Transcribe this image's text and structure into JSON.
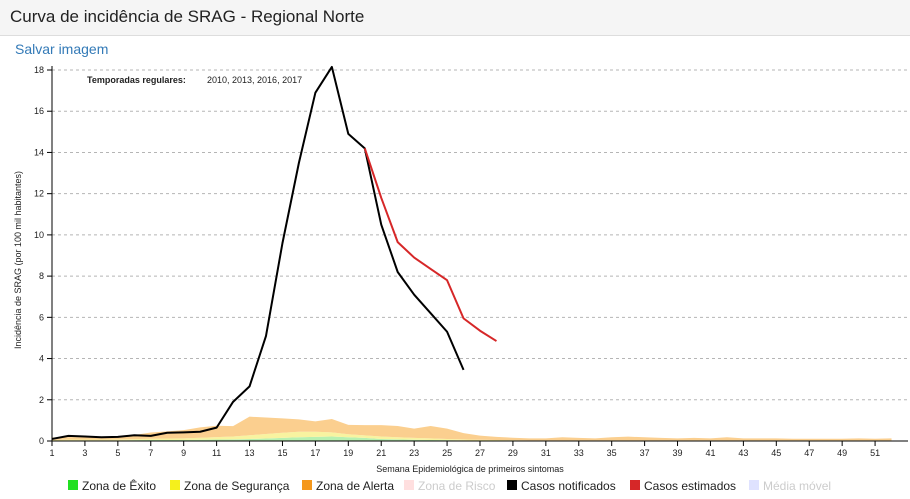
{
  "page": {
    "title": "Curva de incidência de SRAG - Regional Norte",
    "save_label": "Salvar imagem"
  },
  "chart_data": {
    "type": "line",
    "title": "",
    "xlabel": "Semana Epidemiológica de primeiros sintomas",
    "ylabel": "Incidência de SRAG (por 100 mil habitantes)",
    "xlim": [
      1,
      53
    ],
    "ylim": [
      0,
      18
    ],
    "xticks": [
      1,
      3,
      5,
      7,
      9,
      11,
      13,
      15,
      17,
      19,
      21,
      23,
      25,
      27,
      29,
      31,
      33,
      35,
      37,
      39,
      41,
      43,
      45,
      47,
      49,
      51
    ],
    "yticks": [
      0,
      2,
      4,
      6,
      8,
      10,
      12,
      14,
      16,
      18
    ],
    "grid": "horizontal dashed",
    "annotation": {
      "label": "Temporadas regulares:",
      "value": "2010, 2013, 2016, 2017"
    },
    "zones": {
      "x": [
        1,
        2,
        3,
        4,
        5,
        6,
        7,
        8,
        9,
        10,
        11,
        12,
        13,
        14,
        15,
        16,
        17,
        18,
        19,
        20,
        21,
        22,
        23,
        24,
        25,
        26,
        27,
        28,
        29,
        30,
        31,
        32,
        33,
        34,
        35,
        36,
        37,
        38,
        39,
        40,
        41,
        42,
        43,
        44,
        45,
        46,
        47,
        48,
        49,
        50,
        51,
        52
      ],
      "exito": [
        0.02,
        0.03,
        0.03,
        0.03,
        0.03,
        0.04,
        0.05,
        0.05,
        0.05,
        0.06,
        0.07,
        0.08,
        0.1,
        0.12,
        0.15,
        0.18,
        0.2,
        0.22,
        0.18,
        0.15,
        0.1,
        0.08,
        0.06,
        0.05,
        0.04,
        0.03,
        0.02,
        0.02,
        0.01,
        0.01,
        0.01,
        0.01,
        0.01,
        0.01,
        0.01,
        0.01,
        0.01,
        0.01,
        0.01,
        0.01,
        0.01,
        0.01,
        0.01,
        0.01,
        0.01,
        0.01,
        0.01,
        0.01,
        0.01,
        0.01,
        0.01,
        0.01
      ],
      "seguranca": [
        0.03,
        0.04,
        0.04,
        0.04,
        0.05,
        0.05,
        0.06,
        0.07,
        0.08,
        0.1,
        0.12,
        0.14,
        0.18,
        0.22,
        0.25,
        0.27,
        0.25,
        0.2,
        0.15,
        0.12,
        0.12,
        0.1,
        0.09,
        0.08,
        0.06,
        0.05,
        0.04,
        0.03,
        0.03,
        0.02,
        0.02,
        0.02,
        0.02,
        0.02,
        0.02,
        0.02,
        0.02,
        0.02,
        0.02,
        0.02,
        0.02,
        0.02,
        0.02,
        0.02,
        0.02,
        0.02,
        0.02,
        0.02,
        0.02,
        0.02,
        0.02,
        0.02
      ],
      "alerta": [
        0.12,
        0.12,
        0.12,
        0.1,
        0.15,
        0.2,
        0.3,
        0.35,
        0.4,
        0.5,
        0.55,
        0.5,
        0.9,
        0.8,
        0.7,
        0.6,
        0.5,
        0.65,
        0.45,
        0.5,
        0.55,
        0.55,
        0.45,
        0.6,
        0.5,
        0.3,
        0.2,
        0.15,
        0.12,
        0.1,
        0.1,
        0.15,
        0.12,
        0.1,
        0.15,
        0.18,
        0.15,
        0.12,
        0.1,
        0.12,
        0.1,
        0.15,
        0.1,
        0.1,
        0.1,
        0.08,
        0.08,
        0.08,
        0.08,
        0.1,
        0.08,
        0.1
      ]
    },
    "series": [
      {
        "name": "Casos notificados",
        "color": "#000000",
        "x": [
          1,
          2,
          3,
          4,
          5,
          6,
          7,
          8,
          9,
          10,
          11,
          12,
          13,
          14,
          15,
          16,
          17,
          18,
          19,
          20,
          21,
          22,
          23,
          24,
          25,
          26
        ],
        "y": [
          0.1,
          0.25,
          0.22,
          0.18,
          0.2,
          0.28,
          0.25,
          0.4,
          0.42,
          0.45,
          0.65,
          1.9,
          2.65,
          5.1,
          9.6,
          13.5,
          16.9,
          18.15,
          14.9,
          14.2,
          10.5,
          8.2,
          7.1,
          6.2,
          5.3,
          3.45
        ]
      },
      {
        "name": "Casos estimados",
        "color": "#d62728",
        "x": [
          20,
          21,
          22,
          23,
          24,
          25,
          26,
          27,
          28
        ],
        "y": [
          14.2,
          11.8,
          9.65,
          8.9,
          8.35,
          7.8,
          5.95,
          5.35,
          4.85
        ]
      }
    ],
    "legend": [
      {
        "label": "Zona de Êxito",
        "color": "#21e021",
        "active": true
      },
      {
        "label": "Zona de Segurança",
        "color": "#f5f01c",
        "active": true
      },
      {
        "label": "Zona de Alerta",
        "color": "#f5981c",
        "active": true
      },
      {
        "label": "Zona de Risco",
        "color": "#ff9e9e",
        "active": false
      },
      {
        "label": "Casos notificados",
        "color": "#000000",
        "active": true
      },
      {
        "label": "Casos estimados",
        "color": "#d62728",
        "active": true
      },
      {
        "label": "Média móvel",
        "color": "#9fa8ff",
        "active": false
      }
    ]
  }
}
